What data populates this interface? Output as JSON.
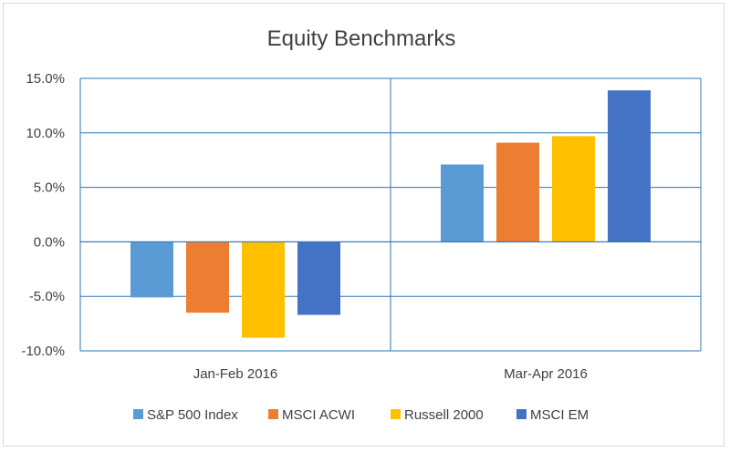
{
  "chart_data": {
    "type": "bar",
    "title": "Equity Benchmarks",
    "xlabel": "",
    "ylabel": "",
    "categories": [
      "Jan-Feb 2016",
      "Mar-Apr 2016"
    ],
    "series": [
      {
        "name": "S&P 500 Index",
        "color": "#5B9BD5",
        "values": [
          -5.1,
          7.1
        ]
      },
      {
        "name": "MSCI ACWI",
        "color": "#ED7D31",
        "values": [
          -6.5,
          9.1
        ]
      },
      {
        "name": "Russell 2000",
        "color": "#FFC000",
        "values": [
          -8.8,
          9.7
        ]
      },
      {
        "name": "MSCI EM",
        "color": "#4472C4",
        "values": [
          -6.7,
          13.9
        ]
      }
    ],
    "ylim": [
      -10,
      15
    ],
    "yticks": [
      15,
      10,
      5,
      0,
      -5,
      -10
    ],
    "ytick_labels": [
      "15.0%",
      "10.0%",
      "5.0%",
      "0.0%",
      "-5.0%",
      "-10.0%"
    ],
    "grid": true,
    "legend_position": "bottom",
    "gridline_color": "#2E75B6"
  }
}
